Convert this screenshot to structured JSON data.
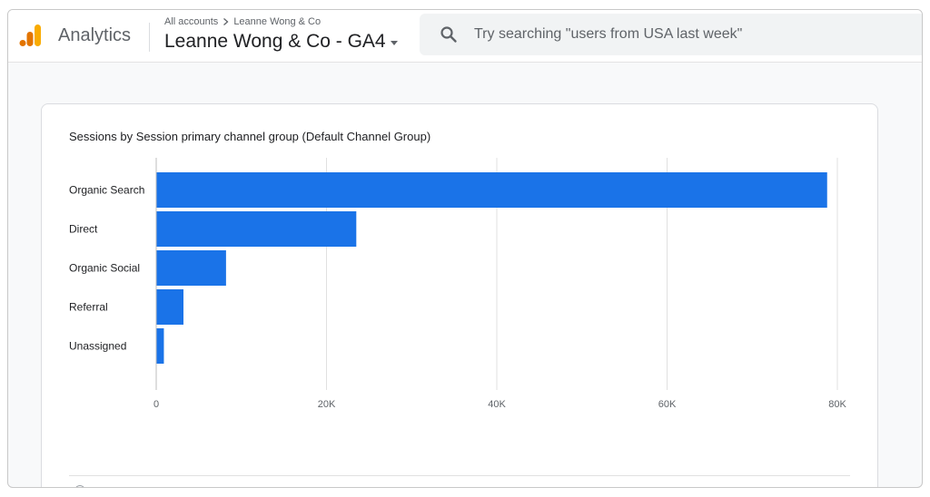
{
  "header": {
    "app_name": "Analytics",
    "breadcrumb": {
      "account": "All accounts",
      "separator": ">",
      "property": "Leanne Wong & Co"
    },
    "property_name": "Leanne Wong & Co - GA4",
    "search_placeholder": "Try searching \"users from USA last week\"",
    "logo_colors": [
      "#f9ab00",
      "#e37400"
    ]
  },
  "card": {
    "title": "Sessions by Session primary channel group (Default Channel Group)"
  },
  "chart_data": {
    "type": "bar",
    "orientation": "horizontal",
    "title": "Sessions by Session primary channel group (Default Channel Group)",
    "categories": [
      "Organic Search",
      "Direct",
      "Organic Social",
      "Referral",
      "Unassigned"
    ],
    "values": [
      78800,
      23500,
      8200,
      3200,
      900
    ],
    "xlim": [
      0,
      80000
    ],
    "ticks": [
      0,
      20000,
      40000,
      60000,
      80000
    ],
    "tick_labels": [
      "0",
      "20K",
      "40K",
      "60K",
      "80K"
    ],
    "grid": true,
    "bar_color": "#1a73e8"
  }
}
